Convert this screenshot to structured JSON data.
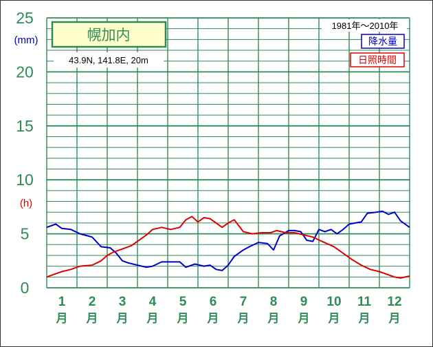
{
  "colors": {
    "grid": "#2e8b57",
    "axis_text": "#2e8b57",
    "precip": "#0000cc",
    "sunshine": "#dd0000",
    "station_box_bg": "#ffffcc"
  },
  "chart_data": {
    "type": "line",
    "station": "幌加内",
    "location_text": "43.9N,  141.8E,  20m",
    "period": "1981年〜2010年",
    "ylim": [
      0,
      25
    ],
    "y_ticks": [
      "0",
      "5",
      "10",
      "15",
      "20",
      "25"
    ],
    "unit_mm": "(mm)",
    "unit_h": "(h)",
    "month_labels": [
      "1",
      "2",
      "3",
      "4",
      "5",
      "6",
      "7",
      "8",
      "9",
      "10",
      "11",
      "12"
    ],
    "month_suffix": "月",
    "x_range_months": [
      0.5,
      12.5
    ],
    "series": [
      {
        "name": "降水量",
        "x": [
          0.5,
          0.8,
          1.0,
          1.3,
          1.6,
          2.0,
          2.3,
          2.6,
          2.8,
          3.0,
          3.2,
          3.5,
          3.8,
          4.0,
          4.3,
          4.6,
          4.9,
          5.1,
          5.4,
          5.7,
          5.9,
          6.1,
          6.3,
          6.5,
          6.7,
          7.0,
          7.2,
          7.5,
          7.8,
          8.0,
          8.2,
          8.5,
          8.7,
          8.9,
          9.1,
          9.3,
          9.5,
          9.7,
          9.9,
          10.1,
          10.3,
          10.5,
          10.7,
          10.9,
          11.1,
          11.4,
          11.6,
          11.8,
          12.0,
          12.2,
          12.5
        ],
        "values": [
          5.6,
          5.9,
          5.5,
          5.4,
          5.0,
          4.7,
          3.8,
          3.7,
          3.2,
          2.5,
          2.3,
          2.1,
          1.9,
          2.0,
          2.4,
          2.4,
          2.4,
          1.9,
          2.2,
          2.0,
          2.1,
          1.7,
          1.6,
          2.1,
          2.9,
          3.5,
          3.8,
          4.2,
          4.1,
          3.5,
          4.8,
          5.3,
          5.3,
          5.2,
          4.4,
          4.3,
          5.4,
          5.2,
          5.4,
          5.0,
          5.4,
          5.9,
          6.0,
          6.1,
          6.9,
          7.0,
          7.1,
          6.8,
          7.0,
          6.2,
          5.6
        ]
      },
      {
        "name": "日照時間",
        "x": [
          0.5,
          0.8,
          1.0,
          1.3,
          1.6,
          2.0,
          2.3,
          2.5,
          2.7,
          3.0,
          3.3,
          3.6,
          3.8,
          4.0,
          4.3,
          4.6,
          4.9,
          5.1,
          5.3,
          5.5,
          5.7,
          5.9,
          6.1,
          6.3,
          6.5,
          6.7,
          7.0,
          7.3,
          7.6,
          7.9,
          8.1,
          8.4,
          8.7,
          9.0,
          9.3,
          9.6,
          10.0,
          10.3,
          10.6,
          10.9,
          11.2,
          11.5,
          11.8,
          12.0,
          12.2,
          12.5
        ],
        "values": [
          1.0,
          1.3,
          1.5,
          1.7,
          2.0,
          2.1,
          2.5,
          3.0,
          3.3,
          3.6,
          3.9,
          4.5,
          4.9,
          5.4,
          5.6,
          5.4,
          5.6,
          6.3,
          6.6,
          6.1,
          6.5,
          6.4,
          6.0,
          5.6,
          6.0,
          6.3,
          5.2,
          5.0,
          5.1,
          5.1,
          5.3,
          5.1,
          5.1,
          4.9,
          4.7,
          4.3,
          3.8,
          3.2,
          2.6,
          2.1,
          1.7,
          1.5,
          1.2,
          1.0,
          0.9,
          1.1
        ]
      }
    ]
  }
}
